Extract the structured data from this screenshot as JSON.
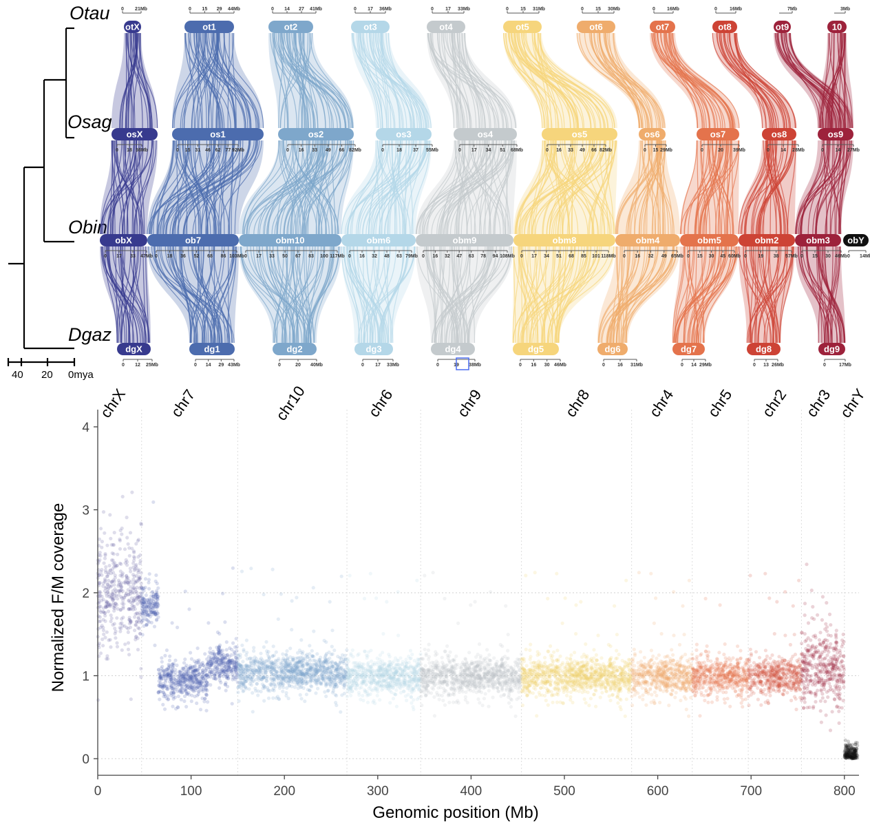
{
  "tree": {
    "species": [
      "Otau",
      "Osag",
      "Obin",
      "Dgaz"
    ],
    "ticks": [
      "40",
      "20",
      "0mya"
    ]
  },
  "synteny": {
    "rows": [
      {
        "species": "Otau",
        "chroms": [
          {
            "name": "otX",
            "ticks": [
              "0",
              "21Mb"
            ],
            "color": "#373a8e"
          },
          {
            "name": "ot1",
            "ticks": [
              "0",
              "15",
              "29",
              "44Mb"
            ],
            "color": "#4c6cae"
          },
          {
            "name": "ot2",
            "ticks": [
              "0",
              "14",
              "27",
              "41Mb"
            ],
            "color": "#7ea7cb"
          },
          {
            "name": "ot3",
            "ticks": [
              "0",
              "17",
              "36Mb"
            ],
            "color": "#b4d7e8"
          },
          {
            "name": "ot4",
            "ticks": [
              "0",
              "17",
              "33Mb"
            ],
            "color": "#c4cacd"
          },
          {
            "name": "ot5",
            "ticks": [
              "0",
              "15",
              "31Mb"
            ],
            "color": "#f6d57c"
          },
          {
            "name": "ot6",
            "ticks": [
              "0",
              "15",
              "30Mb"
            ],
            "color": "#efac6c"
          },
          {
            "name": "ot7",
            "ticks": [
              "0",
              "16Mb"
            ],
            "color": "#e4734c"
          },
          {
            "name": "ot8",
            "ticks": [
              "0",
              "16Mb"
            ],
            "color": "#cd4335"
          },
          {
            "name": "ot9",
            "ticks": [
              "7Mb"
            ],
            "color": "#9d223b"
          },
          {
            "name": "10",
            "ticks": [
              "3Mb"
            ],
            "color": "#9d223b"
          }
        ]
      },
      {
        "species": "Osag",
        "chroms": [
          {
            "name": "osX",
            "ticks": [
              "0",
              "18",
              "36Mb"
            ],
            "color": "#373a8e"
          },
          {
            "name": "os1",
            "ticks": [
              "0",
              "15",
              "31",
              "46",
              "62",
              "77",
              "92Mb"
            ],
            "color": "#4c6cae"
          },
          {
            "name": "os2",
            "ticks": [
              "0",
              "16",
              "33",
              "49",
              "66",
              "82Mb"
            ],
            "color": "#7ea7cb"
          },
          {
            "name": "os3",
            "ticks": [
              "0",
              "18",
              "37",
              "55Mb"
            ],
            "color": "#b4d7e8"
          },
          {
            "name": "os4",
            "ticks": [
              "0",
              "17",
              "34",
              "51",
              "68Mb"
            ],
            "color": "#c4cacd"
          },
          {
            "name": "os5",
            "ticks": [
              "0",
              "16",
              "33",
              "49",
              "66",
              "82Mb"
            ],
            "color": "#f6d57c"
          },
          {
            "name": "os6",
            "ticks": [
              "0",
              "15",
              "29Mb"
            ],
            "color": "#efac6c"
          },
          {
            "name": "os7",
            "ticks": [
              "0",
              "20",
              "39Mb"
            ],
            "color": "#e4734c"
          },
          {
            "name": "os8",
            "ticks": [
              "0",
              "14",
              "28Mb"
            ],
            "color": "#cd4335"
          },
          {
            "name": "os9",
            "ticks": [
              "0",
              "14",
              "27Mb"
            ],
            "color": "#9d223b"
          }
        ]
      },
      {
        "species": "Obin",
        "chroms": [
          {
            "name": "obX",
            "ticks": [
              "0",
              "17",
              "33",
              "47Mb"
            ],
            "color": "#373a8e"
          },
          {
            "name": "ob7",
            "ticks": [
              "0",
              "18",
              "36",
              "52",
              "68",
              "86",
              "103Mb"
            ],
            "color": "#4c6cae"
          },
          {
            "name": "obm10",
            "ticks": [
              "0",
              "17",
              "33",
              "50",
              "67",
              "83",
              "100",
              "117Mb"
            ],
            "color": "#7ea7cb"
          },
          {
            "name": "obm6",
            "ticks": [
              "0",
              "16",
              "32",
              "48",
              "63",
              "79Mb"
            ],
            "color": "#b4d7e8"
          },
          {
            "name": "obm9",
            "ticks": [
              "0",
              "16",
              "32",
              "47",
              "63",
              "78",
              "94",
              "108Mb"
            ],
            "color": "#c4cacd"
          },
          {
            "name": "obm8",
            "ticks": [
              "0",
              "17",
              "34",
              "51",
              "68",
              "85",
              "101",
              "118Mb"
            ],
            "color": "#f6d57c"
          },
          {
            "name": "obm4",
            "ticks": [
              "0",
              "16",
              "32",
              "49",
              "65Mb"
            ],
            "color": "#efac6c"
          },
          {
            "name": "obm5",
            "ticks": [
              "0",
              "15",
              "30",
              "45",
              "60Mb"
            ],
            "color": "#e4734c"
          },
          {
            "name": "obm2",
            "ticks": [
              "0",
              "19",
              "38",
              "57Mb"
            ],
            "color": "#cd4335"
          },
          {
            "name": "obm3",
            "ticks": [
              "0",
              "15",
              "30",
              "46Mb"
            ],
            "color": "#9d223b"
          },
          {
            "name": "obY",
            "ticks": [
              "0",
              "14Mb"
            ],
            "color": "#111111"
          }
        ]
      },
      {
        "species": "Dgaz",
        "chroms": [
          {
            "name": "dgX",
            "ticks": [
              "0",
              "12",
              "25Mb"
            ],
            "color": "#373a8e"
          },
          {
            "name": "dg1",
            "ticks": [
              "0",
              "14",
              "29",
              "43Mb"
            ],
            "color": "#4c6cae"
          },
          {
            "name": "dg2",
            "ticks": [
              "0",
              "20",
              "40Mb"
            ],
            "color": "#7ea7cb"
          },
          {
            "name": "dg3",
            "ticks": [
              "0",
              "17",
              "33Mb"
            ],
            "color": "#b4d7e8"
          },
          {
            "name": "dg4",
            "ticks": [
              "0",
              "19",
              "38Mb"
            ],
            "color": "#c4cacd"
          },
          {
            "name": "dg5",
            "ticks": [
              "0",
              "16",
              "30",
              "46Mb"
            ],
            "color": "#f6d57c"
          },
          {
            "name": "dg6",
            "ticks": [
              "0",
              "16",
              "31Mb"
            ],
            "color": "#efac6c"
          },
          {
            "name": "dg7",
            "ticks": [
              "0",
              "14",
              "29Mb"
            ],
            "color": "#e4734c"
          },
          {
            "name": "dg8",
            "ticks": [
              "0",
              "13",
              "26Mb"
            ],
            "color": "#cd4335"
          },
          {
            "name": "dg9",
            "ticks": [
              "0",
              "17Mb"
            ],
            "color": "#9d223b"
          }
        ]
      }
    ]
  },
  "chart_data": {
    "type": "scatter",
    "xlabel": "Genomic position (Mb)",
    "ylabel": "Normalized F/M coverage",
    "xlim": [
      0,
      812
    ],
    "ylim": [
      -0.2,
      4.2
    ],
    "x_ticks": [
      "0",
      "100",
      "200",
      "300",
      "400",
      "500",
      "600",
      "700",
      "800"
    ],
    "y_ticks": [
      "0",
      "1",
      "2",
      "3",
      "4"
    ],
    "grid": "horizontal dotted at 0, 1, 2",
    "chromosomes": [
      {
        "name": "chrX",
        "start": 0,
        "end": 47,
        "median": 2.0,
        "color": "#6a63a6"
      },
      {
        "name": "chr7",
        "start": 47,
        "end": 150,
        "median": 0.95,
        "color": "#4a5fae"
      },
      {
        "name": "chr10",
        "start": 150,
        "end": 267,
        "median": 1.05,
        "color": "#7ea7cb"
      },
      {
        "name": "chr6",
        "start": 267,
        "end": 346,
        "median": 1.0,
        "color": "#b4d7e8"
      },
      {
        "name": "chr9",
        "start": 346,
        "end": 454,
        "median": 1.0,
        "color": "#bcc2c6"
      },
      {
        "name": "chr8",
        "start": 454,
        "end": 572,
        "median": 1.0,
        "color": "#f2d06e"
      },
      {
        "name": "chr4",
        "start": 572,
        "end": 637,
        "median": 1.0,
        "color": "#efac6c"
      },
      {
        "name": "chr5",
        "start": 637,
        "end": 697,
        "median": 1.0,
        "color": "#e4734c"
      },
      {
        "name": "chr2",
        "start": 697,
        "end": 754,
        "median": 1.0,
        "color": "#d0503e"
      },
      {
        "name": "chr3",
        "start": 754,
        "end": 800,
        "median": 1.1,
        "color": "#9d223b"
      },
      {
        "name": "chrY",
        "start": 800,
        "end": 814,
        "median": 0.05,
        "color": "#111111"
      }
    ]
  }
}
